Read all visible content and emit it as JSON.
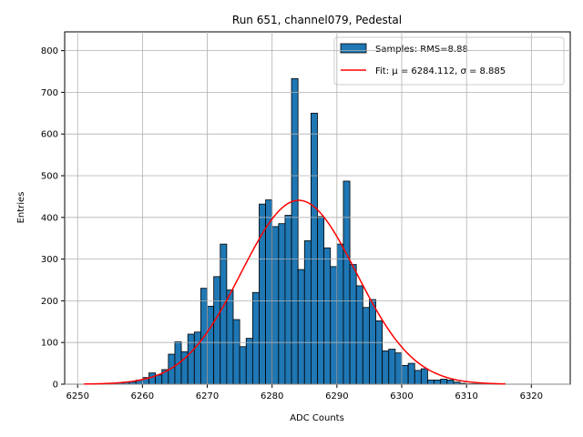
{
  "chart_data": {
    "type": "bar",
    "title": "Run 651, channel079, Pedestal",
    "xlabel": "ADC Counts",
    "ylabel": "Entries",
    "xlim": [
      6248,
      6326
    ],
    "ylim": [
      0,
      845
    ],
    "x_ticks": [
      6250,
      6260,
      6270,
      6280,
      6290,
      6300,
      6310,
      6320
    ],
    "y_ticks": [
      0,
      100,
      200,
      300,
      400,
      500,
      600,
      700,
      800
    ],
    "grid": true,
    "legend_position": "top-right",
    "bin_width": 1,
    "bin_starts": [
      6253,
      6254,
      6255,
      6256,
      6257,
      6258,
      6259,
      6260,
      6261,
      6262,
      6263,
      6264,
      6265,
      6266,
      6267,
      6268,
      6269,
      6270,
      6271,
      6272,
      6273,
      6274,
      6275,
      6276,
      6277,
      6278,
      6279,
      6280,
      6281,
      6282,
      6283,
      6284,
      6285,
      6286,
      6287,
      6288,
      6289,
      6290,
      6291,
      6292,
      6293,
      6294,
      6295,
      6296,
      6297,
      6298,
      6299,
      6300,
      6301,
      6302,
      6303,
      6304,
      6305,
      6306,
      6307,
      6308,
      6309,
      6310,
      6311,
      6312
    ],
    "counts": [
      1,
      1,
      2,
      3,
      5,
      6,
      10,
      16,
      27,
      22,
      35,
      72,
      102,
      78,
      120,
      125,
      230,
      187,
      258,
      336,
      226,
      155,
      90,
      110,
      220,
      432,
      442,
      378,
      385,
      405,
      733,
      275,
      344,
      650,
      402,
      327,
      282,
      336,
      487,
      287,
      236,
      184,
      203,
      152,
      80,
      84,
      75,
      45,
      50,
      33,
      37,
      10,
      10,
      12,
      10,
      5,
      2,
      1,
      1,
      1
    ],
    "bar_color": "#1f77b4",
    "fit_color": "#ff0000",
    "fit": {
      "mu": 6284.112,
      "sigma": 8.885,
      "amplitude": 441,
      "x_range": [
        6251,
        6316
      ]
    },
    "series": [
      {
        "name": "Samples: RMS=8.88",
        "kind": "histogram"
      },
      {
        "name": "Fit: μ = 6284.112, σ = 8.885",
        "kind": "line"
      }
    ]
  }
}
